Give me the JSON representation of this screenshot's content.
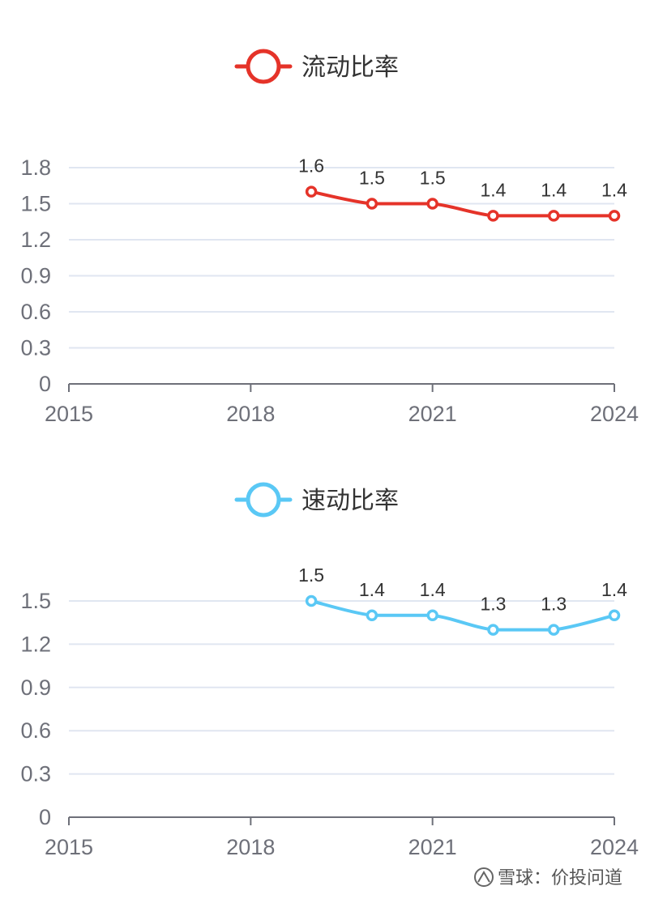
{
  "chart_data": [
    {
      "type": "line",
      "x": [
        2019,
        2020,
        2021,
        2022,
        2023,
        2024
      ],
      "series": [
        {
          "name": "流动比率",
          "values": [
            1.6,
            1.5,
            1.5,
            1.4,
            1.4,
            1.4
          ],
          "color": "#e53329"
        }
      ],
      "xlim": [
        2015,
        2024
      ],
      "xticks": [
        "2015",
        "2018",
        "2021",
        "2024"
      ],
      "ylim": [
        0,
        1.8
      ],
      "yticks": [
        "0",
        "0.3",
        "0.6",
        "0.9",
        "1.2",
        "1.5",
        "1.8"
      ],
      "grid": true,
      "legend": "top-center",
      "smooth": true,
      "data_labels": true
    },
    {
      "type": "line",
      "x": [
        2019,
        2020,
        2021,
        2022,
        2023,
        2024
      ],
      "series": [
        {
          "name": "速动比率",
          "values": [
            1.5,
            1.4,
            1.4,
            1.3,
            1.3,
            1.4
          ],
          "color": "#5ac8f5"
        }
      ],
      "xlim": [
        2015,
        2024
      ],
      "xticks": [
        "2015",
        "2018",
        "2021",
        "2024"
      ],
      "ylim": [
        0,
        1.5
      ],
      "yticks": [
        "0",
        "0.3",
        "0.6",
        "0.9",
        "1.2",
        "1.5"
      ],
      "grid": true,
      "legend": "top-center",
      "smooth": true,
      "data_labels": true
    }
  ],
  "watermark": {
    "text": "雪球：价投问道",
    "icon": "snowball-logo-icon"
  }
}
